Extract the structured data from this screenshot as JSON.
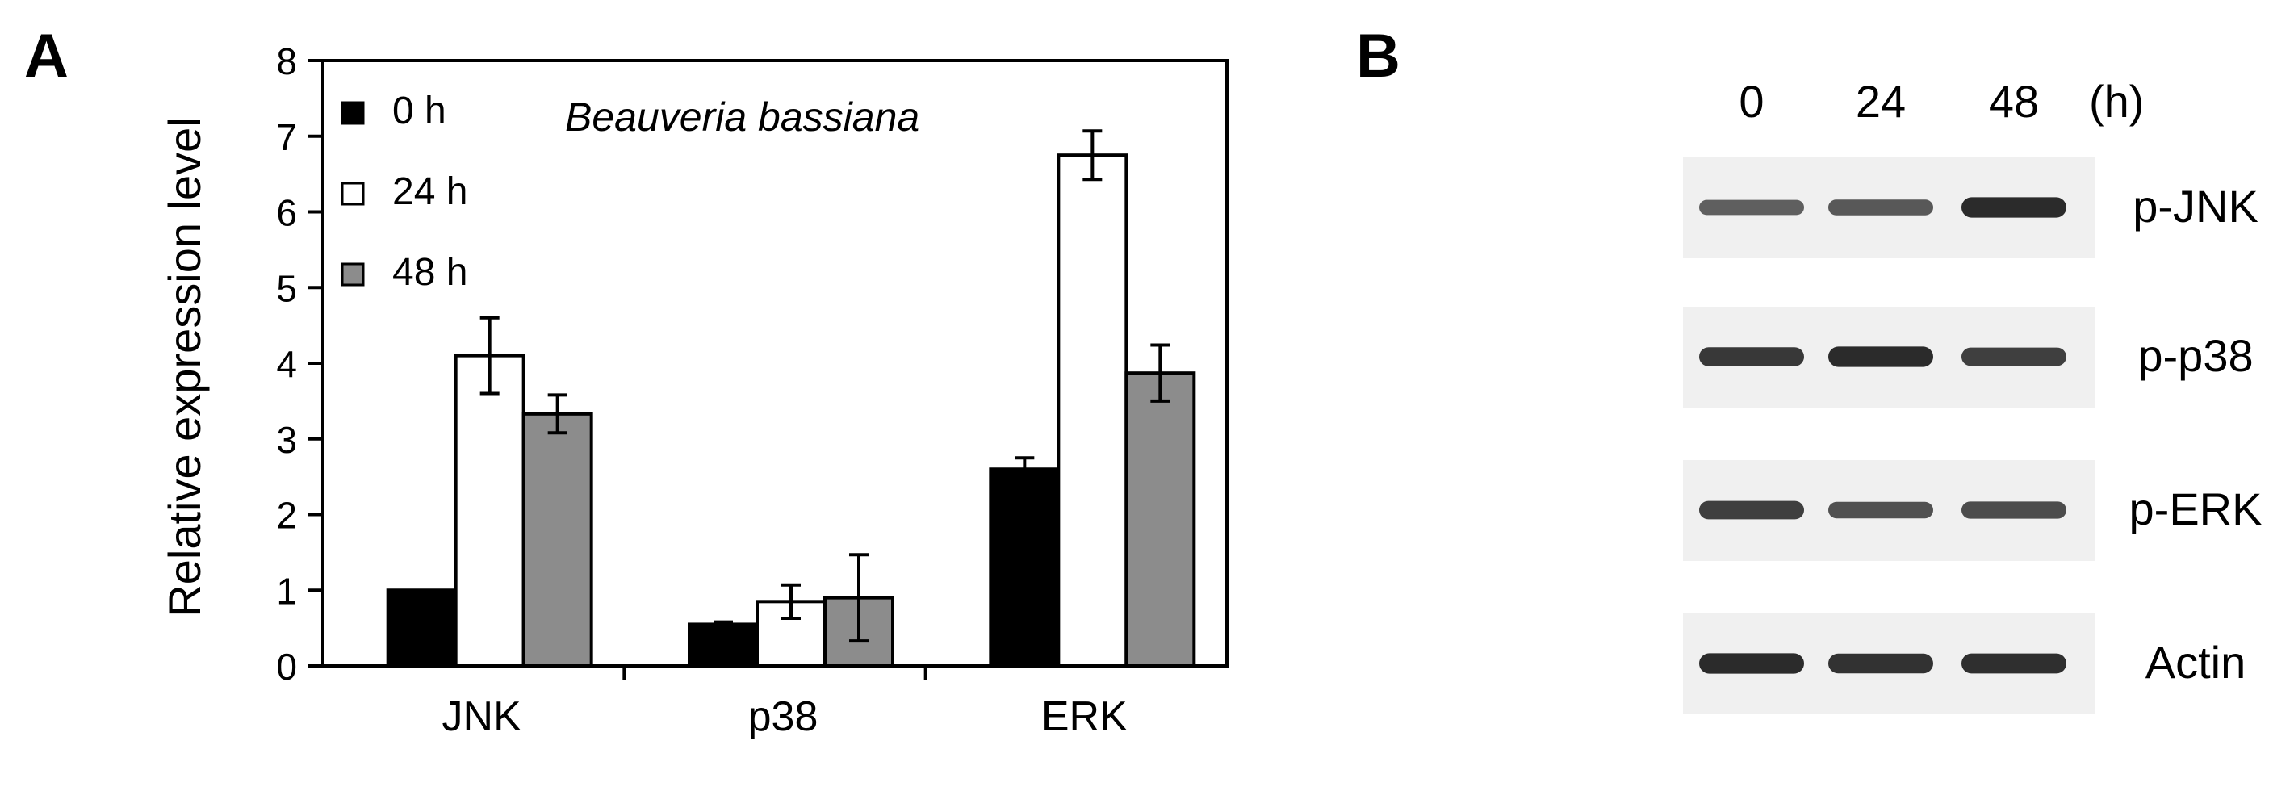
{
  "panel_a": {
    "label": "A",
    "annotation": "Beauveria bassiana",
    "ylabel": "Relative expression level"
  },
  "panel_b": {
    "label": "B",
    "lane_labels": [
      "0",
      "24",
      "48"
    ],
    "time_unit": "(h)",
    "rows": [
      {
        "name": "p-JNK",
        "intensities": [
          0.55,
          0.6,
          0.95
        ]
      },
      {
        "name": "p-p38",
        "intensities": [
          0.85,
          0.95,
          0.8
        ]
      },
      {
        "name": "p-ERK",
        "intensities": [
          0.8,
          0.65,
          0.7
        ]
      },
      {
        "name": "Actin",
        "intensities": [
          0.95,
          0.9,
          0.92
        ]
      }
    ]
  },
  "colors": {
    "series_0h": "#000000",
    "series_24h": "#ffffff",
    "series_48h": "#8c8c8c",
    "axis": "#000000",
    "blot_bg": "#f0f0f0",
    "band": "#1a1a1a"
  },
  "chart_data": {
    "type": "bar",
    "categories": [
      "JNK",
      "p38",
      "ERK"
    ],
    "series": [
      {
        "name": "0 h",
        "values": [
          1.0,
          0.55,
          2.6
        ],
        "errors": [
          0.0,
          0.03,
          0.15
        ]
      },
      {
        "name": "24 h",
        "values": [
          4.1,
          0.85,
          6.75
        ],
        "errors": [
          0.5,
          0.22,
          0.32
        ]
      },
      {
        "name": "48 h",
        "values": [
          3.33,
          0.9,
          3.87
        ],
        "errors": [
          0.25,
          0.57,
          0.37
        ]
      }
    ],
    "ylim": [
      0,
      8
    ],
    "yticks": [
      0,
      1,
      2,
      3,
      4,
      5,
      6,
      7,
      8
    ],
    "ylabel": "Relative expression level",
    "xlabel": "",
    "legend_position": "top-left",
    "grid": false
  }
}
